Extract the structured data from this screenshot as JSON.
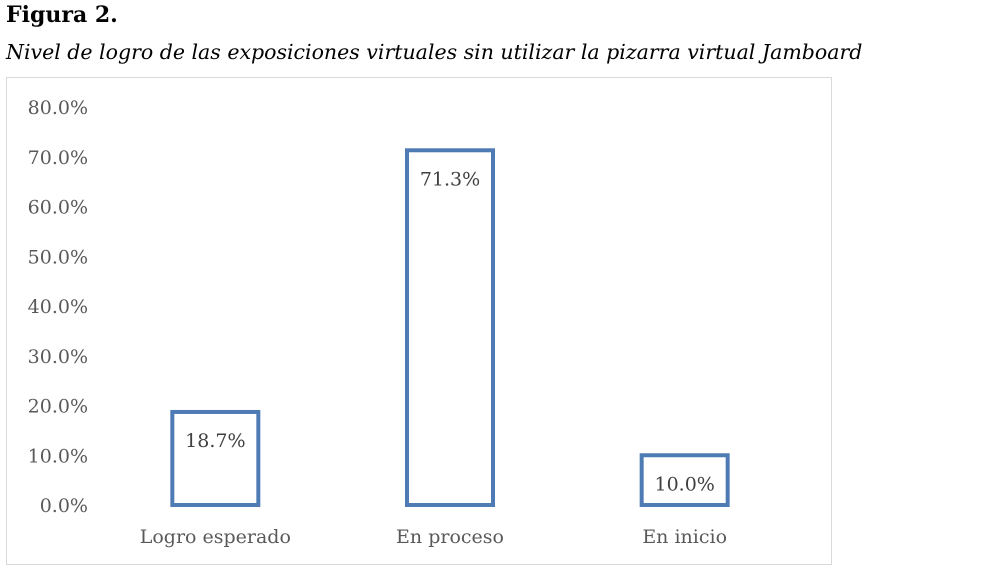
{
  "figure": {
    "label": "Figura 2.",
    "title": "Nivel de logro de las exposiciones virtuales sin utilizar la pizarra virtual Jamboard"
  },
  "chart_data": {
    "type": "bar",
    "categories": [
      "Logro esperado",
      "En proceso",
      "En inicio"
    ],
    "values": [
      18.7,
      71.3,
      10.0
    ],
    "data_labels": [
      "18.7%",
      "71.3%",
      "10.0%"
    ],
    "ylim": [
      0,
      80
    ],
    "yticks": [
      0,
      10,
      20,
      30,
      40,
      50,
      60,
      70,
      80
    ],
    "ytick_labels": [
      "0.0%",
      "10.0%",
      "20.0%",
      "30.0%",
      "40.0%",
      "50.0%",
      "60.0%",
      "70.0%",
      "80.0%"
    ],
    "xlabel": "",
    "ylabel": "",
    "grid": false,
    "legend": "none",
    "bar_style": "outline",
    "bar_color": "#4f7bb5",
    "text_color": "#595959"
  }
}
